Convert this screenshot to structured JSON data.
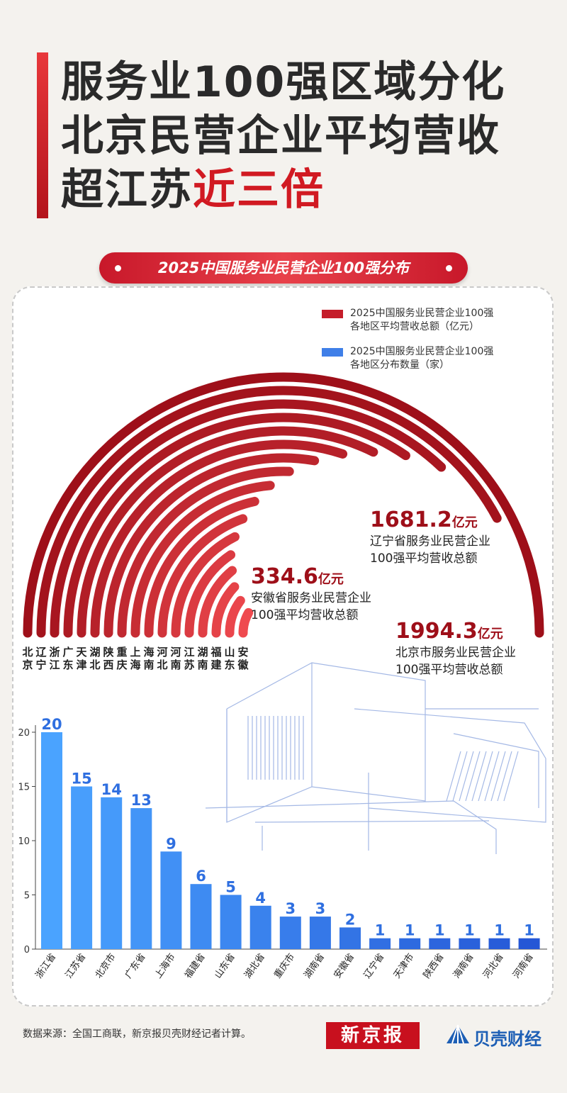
{
  "title": {
    "line1": "服务业100强区域分化",
    "line2": "北京民营企业平均营收",
    "line3_plain": "超江苏",
    "line3_highlight": "近三倍"
  },
  "subtitle": "2025中国服务业民营企业100强分布",
  "legend": {
    "revenue_line1": "2025中国服务业民营企业100强",
    "revenue_line2": "各地区平均营收总额（亿元）",
    "count_line1": "2025中国服务业民营企业100强",
    "count_line2": "各地区分布数量（家）"
  },
  "annotations": {
    "liaoning": {
      "value": "1681.2",
      "unit": "亿元",
      "line1": "辽宁省服务业民营企业",
      "line2": "100强平均营收总额"
    },
    "anhui": {
      "value": "334.6",
      "unit": "亿元",
      "line1": "安徽省服务业民营企业",
      "line2": "100强平均营收总额"
    },
    "beijing": {
      "value": "1994.3",
      "unit": "亿元",
      "line1": "北京市服务业民营企业",
      "line2": "100强平均营收总额"
    }
  },
  "chart_data": [
    {
      "type": "radial-bar",
      "title": "2025中国服务业民营企业100强各地区平均营收总额（亿元）",
      "categories": [
        "北京",
        "辽宁",
        "浙江",
        "广东",
        "天津",
        "湖北",
        "陕西",
        "重庆",
        "上海",
        "海南",
        "河北",
        "河南",
        "江苏",
        "湖南",
        "福建",
        "山东",
        "安徽"
      ],
      "values": [
        1994.3,
        1681.2,
        1480,
        1380,
        1290,
        1200,
        1110,
        1020,
        940,
        860,
        780,
        700,
        620,
        560,
        480,
        410,
        334.6
      ],
      "max_sweep_value": 1994.3
    },
    {
      "type": "bar",
      "title": "2025中国服务业民营企业100强各地区分布数量（家）",
      "categories": [
        "浙江省",
        "江苏省",
        "北京市",
        "广东省",
        "上海市",
        "福建省",
        "山东省",
        "湖北省",
        "重庆市",
        "湖南省",
        "安徽省",
        "辽宁省",
        "天津市",
        "陕西省",
        "海南省",
        "河北省",
        "河南省"
      ],
      "values": [
        20,
        15,
        14,
        13,
        9,
        6,
        5,
        4,
        3,
        3,
        2,
        1,
        1,
        1,
        1,
        1,
        1
      ],
      "ylim": [
        0,
        20
      ],
      "yticks": [
        0,
        5,
        10,
        15,
        20
      ]
    }
  ],
  "source": "数据来源：全国工商联，新京报贝壳财经记者计算。",
  "logos": {
    "xjb": "新京报",
    "bk": "贝壳财经"
  },
  "colors": {
    "red_dark": "#9e0f19",
    "red_light": "#ef4a4f",
    "blue_light": "#4aa3ff",
    "blue_dark": "#2557d6"
  }
}
